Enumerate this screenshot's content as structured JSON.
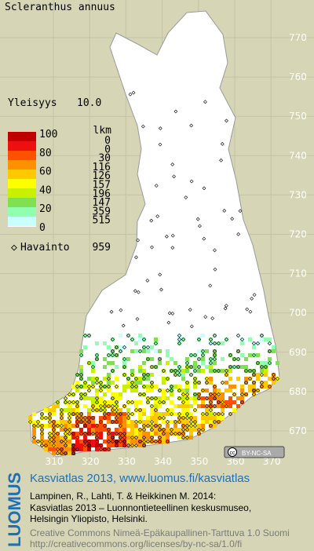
{
  "header": {
    "title": "Scleranthus annuus"
  },
  "frequency": {
    "label": "Yleisyys",
    "value": "10.0"
  },
  "legend": {
    "count_header": "lkm",
    "scale_labels": [
      "100",
      "80",
      "60",
      "40",
      "20",
      "0"
    ],
    "colors": [
      "#c00000",
      "#ee1010",
      "#ff5000",
      "#ff9000",
      "#ffc800",
      "#ffff00",
      "#c8f000",
      "#80e050",
      "#90ffb0",
      "#c8ffff"
    ],
    "counts": [
      "0",
      "0",
      "30",
      "116",
      "126",
      "157",
      "196",
      "147",
      "359",
      "515"
    ],
    "observation_label": "Havainto",
    "observation_count": "959"
  },
  "grid": {
    "xticks": [
      310,
      320,
      330,
      340,
      350,
      360,
      370
    ],
    "yticks": [
      770,
      760,
      750,
      740,
      730,
      720,
      710,
      700,
      690,
      680,
      670
    ]
  },
  "license_badge": "BY-NC-SA",
  "footer": {
    "brand": "LUOMUS",
    "link": "Kasviatlas 2013, www.luomus.fi/kasviatlas",
    "citation": [
      "Lampinen, R., Lahti, T. & Heikkinen M. 2014:",
      "Kasviatlas 2013 – Luonnontieteellinen keskusmuseo,",
      "Helsingin Yliopisto, Helsinki."
    ],
    "license": [
      "Creative Commons Nimeä-Epäkaupallinen-Tarttuva 1.0 Suomi",
      "http://creativecommons.org/licenses/by-nc-sa/1.0/fi"
    ]
  }
}
